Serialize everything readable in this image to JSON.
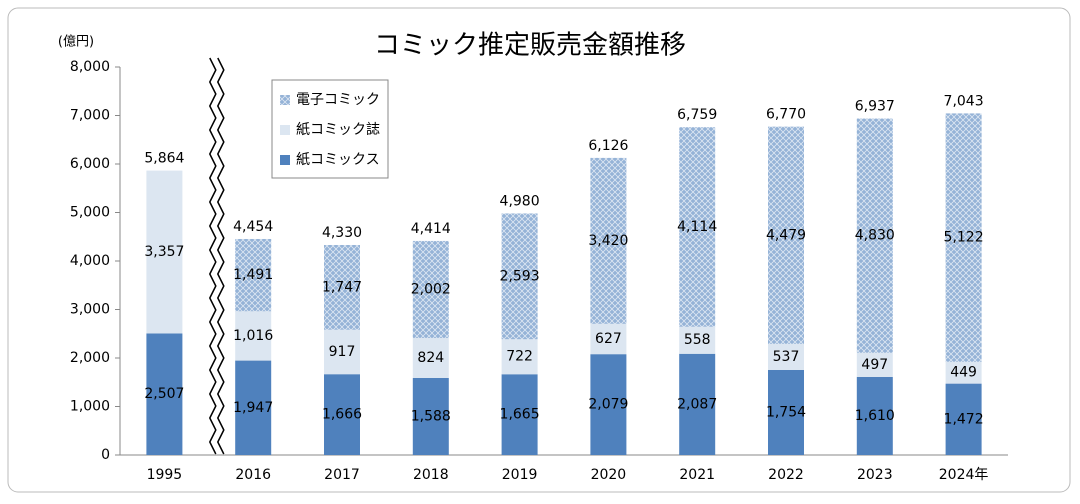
{
  "chart_data": {
    "type": "stacked-bar",
    "title": "コミック推定販売金額推移",
    "y_unit_label": "(億円)",
    "categories": [
      "1995",
      "2016",
      "2017",
      "2018",
      "2019",
      "2020",
      "2021",
      "2022",
      "2023",
      "2024年"
    ],
    "series": [
      {
        "name": "紙コミックス",
        "color": "#4f81bd",
        "values": [
          2507,
          1947,
          1666,
          1588,
          1665,
          2079,
          2087,
          1754,
          1610,
          1472
        ],
        "value_labels": [
          "2,507",
          "1,947",
          "1,666",
          "1,588",
          "1,665",
          "2,079",
          "2,087",
          "1,754",
          "1,610",
          "1,472"
        ]
      },
      {
        "name": "紙コミック誌",
        "color": "#dce6f1",
        "values": [
          3357,
          1016,
          917,
          824,
          722,
          627,
          558,
          537,
          497,
          449
        ],
        "value_labels": [
          "3,357",
          "1,016",
          "917",
          "824",
          "722",
          "627",
          "558",
          "537",
          "497",
          "449"
        ]
      },
      {
        "name": "電子コミック",
        "color": "#95b3d7",
        "pattern": true,
        "values": [
          null,
          1491,
          1747,
          2002,
          2593,
          3420,
          4114,
          4479,
          4830,
          5122
        ],
        "value_labels": [
          null,
          "1,491",
          "1,747",
          "2,002",
          "2,593",
          "3,420",
          "4,114",
          "4,479",
          "4,830",
          "5,122"
        ]
      }
    ],
    "totals": {
      "values": [
        5864,
        4454,
        4330,
        4414,
        4980,
        6126,
        6759,
        6770,
        6937,
        7043
      ],
      "value_labels": [
        "5,864",
        "4,454",
        "4,330",
        "4,414",
        "4,980",
        "6,126",
        "6,759",
        "6,770",
        "6,937",
        "7,043"
      ]
    },
    "ylim": [
      0,
      8000
    ],
    "yticks": [
      0,
      {
        "value": 1000,
        "label": "1,000"
      },
      {
        "value": 2000,
        "label": "2,000"
      },
      {
        "value": 3000,
        "label": "3,000"
      },
      {
        "value": 4000,
        "label": "4,000"
      },
      {
        "value": 5000,
        "label": "5,000"
      },
      {
        "value": 6000,
        "label": "6,000"
      },
      {
        "value": 7000,
        "label": "7,000"
      },
      {
        "value": 8000,
        "label": "8,000"
      }
    ],
    "grid": false,
    "legend_position": "top-left"
  }
}
